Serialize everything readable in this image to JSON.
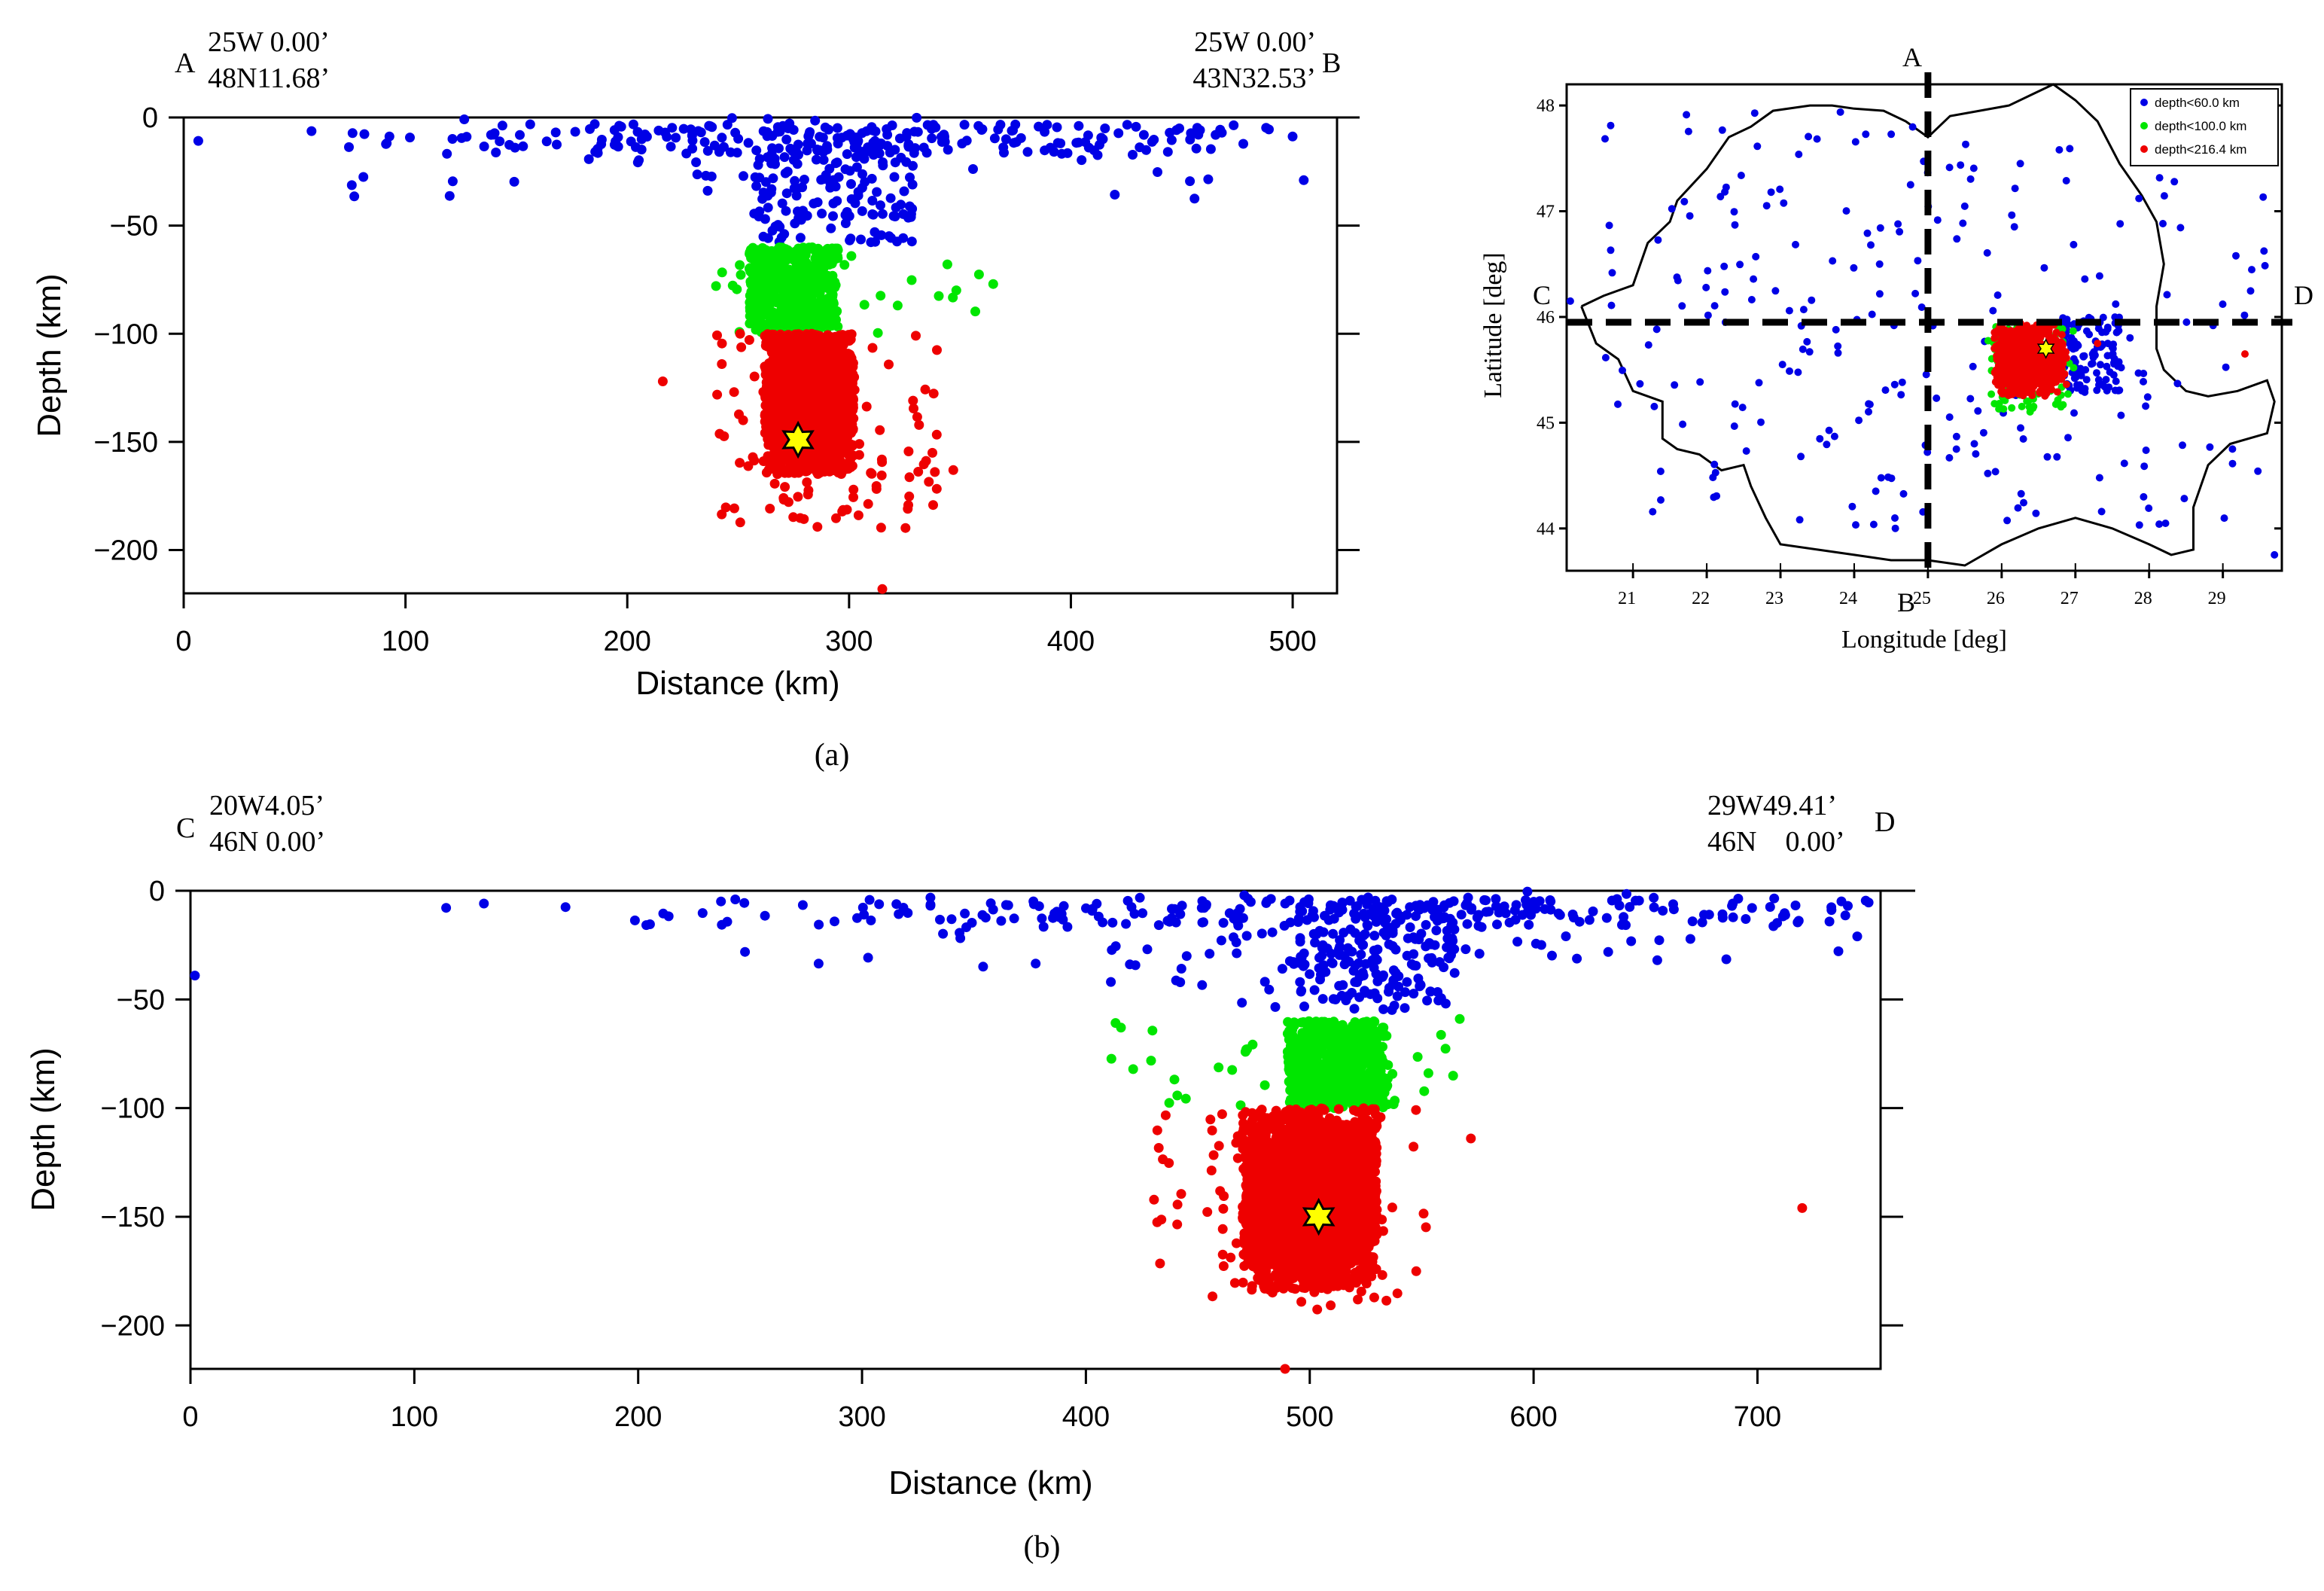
{
  "figure": {
    "caption_a": "(a)",
    "caption_b": "(b)"
  },
  "colors": {
    "shallow": "#0000e6",
    "intermediate": "#00e600",
    "deep": "#ee0000",
    "star": "#ffff00",
    "axis": "#000000"
  },
  "chart_data": [
    {
      "id": "profile-a",
      "type": "scatter",
      "title": "",
      "xlabel": "Distance (km)",
      "ylabel": "Depth (km)",
      "xlim": [
        0,
        520
      ],
      "ylim": [
        -220,
        0
      ],
      "xticks": [
        0,
        100,
        200,
        300,
        400,
        500
      ],
      "yticks": [
        0,
        -50,
        -100,
        -150,
        -200
      ],
      "start_letter": "A",
      "end_letter": "B",
      "start_label": [
        "25W 0.00’",
        "48N11.68’"
      ],
      "end_label": [
        "25W 0.00’",
        "43N32.53’"
      ],
      "clusters": [
        {
          "series": "shallow",
          "n": 260,
          "x": [
            0,
            510
          ],
          "y": [
            -38,
            0
          ],
          "shape": "surface",
          "center": 285,
          "spread": 120
        },
        {
          "series": "shallow",
          "n": 150,
          "x": [
            255,
            330
          ],
          "y": [
            -58,
            -5
          ],
          "shape": "box"
        },
        {
          "series": "intermediate",
          "n": 550,
          "x": [
            255,
            295
          ],
          "y": [
            -100,
            -60
          ],
          "shape": "box"
        },
        {
          "series": "intermediate",
          "n": 30,
          "x": [
            240,
            365
          ],
          "y": [
            -100,
            -62
          ],
          "shape": "box"
        },
        {
          "series": "deep",
          "n": 2600,
          "x": [
            262,
            302
          ],
          "y": [
            -165,
            -100
          ],
          "shape": "blob",
          "cx": 282,
          "cy": -130,
          "rx": 24,
          "ry": 34
        },
        {
          "series": "deep",
          "n": 120,
          "x": [
            240,
            340
          ],
          "y": [
            -190,
            -100
          ],
          "shape": "box"
        }
      ],
      "extra_points": [
        {
          "series": "deep",
          "x": 216,
          "y": -122
        },
        {
          "series": "deep",
          "x": 315,
          "y": -218
        },
        {
          "series": "deep",
          "x": 347,
          "y": -163
        },
        {
          "series": "shallow",
          "x": 505,
          "y": -29
        },
        {
          "series": "intermediate",
          "x": 365,
          "y": -77
        }
      ],
      "mainshock": {
        "x": 277,
        "y": -149
      }
    },
    {
      "id": "profile-b",
      "type": "scatter",
      "title": "",
      "xlabel": "Distance (km)",
      "ylabel": "Depth (km)",
      "xlim": [
        0,
        755
      ],
      "ylim": [
        -220,
        0
      ],
      "xticks": [
        0,
        100,
        200,
        300,
        400,
        500,
        600,
        700
      ],
      "yticks": [
        0,
        -50,
        -100,
        -150,
        -200
      ],
      "start_letter": "C",
      "end_letter": "D",
      "start_label": [
        "20W4.05’",
        "46N 0.00’"
      ],
      "end_label": [
        "29W49.41’",
        "46N    0.00’"
      ],
      "clusters": [
        {
          "series": "shallow",
          "n": 280,
          "x": [
            25,
            750
          ],
          "y": [
            -35,
            0
          ],
          "shape": "surface",
          "center": 530,
          "spread": 160
        },
        {
          "series": "shallow",
          "n": 200,
          "x": [
            495,
            565
          ],
          "y": [
            -55,
            -5
          ],
          "shape": "box"
        },
        {
          "series": "shallow",
          "n": 20,
          "x": [
            400,
            495
          ],
          "y": [
            -55,
            -15
          ],
          "shape": "box"
        },
        {
          "series": "intermediate",
          "n": 600,
          "x": [
            490,
            535
          ],
          "y": [
            -100,
            -60
          ],
          "shape": "box"
        },
        {
          "series": "intermediate",
          "n": 40,
          "x": [
            410,
            565
          ],
          "y": [
            -100,
            -60
          ],
          "shape": "box"
        },
        {
          "series": "deep",
          "n": 2800,
          "x": [
            470,
            530
          ],
          "y": [
            -185,
            -100
          ],
          "shape": "blob",
          "cx": 500,
          "cy": -140,
          "rx": 40,
          "ry": 40
        },
        {
          "series": "deep",
          "n": 80,
          "x": [
            430,
            555
          ],
          "y": [
            -195,
            -100
          ],
          "shape": "box"
        }
      ],
      "extra_points": [
        {
          "series": "deep",
          "x": 720,
          "y": -146
        },
        {
          "series": "deep",
          "x": 489,
          "y": -220
        },
        {
          "series": "shallow",
          "x": 2,
          "y": -39
        },
        {
          "series": "intermediate",
          "x": 567,
          "y": -59
        },
        {
          "series": "deep",
          "x": 572,
          "y": -114
        }
      ],
      "mainshock": {
        "x": 504,
        "y": -150
      }
    },
    {
      "id": "epicenter-map",
      "type": "scatter",
      "title": "",
      "xlabel": "Longitude [deg]",
      "ylabel": "Latitude [deg]",
      "xlim": [
        20.1,
        29.8
      ],
      "ylim": [
        43.6,
        48.2
      ],
      "xticks": [
        21,
        22,
        23,
        24,
        25,
        26,
        27,
        28,
        29
      ],
      "yticks": [
        44,
        45,
        46,
        47,
        48
      ],
      "legend_position": "top-right",
      "legend": [
        {
          "series": "shallow",
          "label": "depth<60.0 km"
        },
        {
          "series": "intermediate",
          "label": "depth<100.0 km"
        },
        {
          "series": "deep",
          "label": "depth<216.4 km"
        }
      ],
      "section_lines": [
        {
          "from_letter": "A",
          "to_letter": "B",
          "lon": 25.0
        },
        {
          "from_letter": "C",
          "to_letter": "D",
          "lat": 45.95
        }
      ],
      "border": [
        [
          20.3,
          46.1
        ],
        [
          20.6,
          46.2
        ],
        [
          21.0,
          46.3
        ],
        [
          21.2,
          46.7
        ],
        [
          21.5,
          46.9
        ],
        [
          21.6,
          47.1
        ],
        [
          22.0,
          47.4
        ],
        [
          22.3,
          47.7
        ],
        [
          22.6,
          47.8
        ],
        [
          22.9,
          47.95
        ],
        [
          23.4,
          48.0
        ],
        [
          23.7,
          48.0
        ],
        [
          24.0,
          47.97
        ],
        [
          24.4,
          47.95
        ],
        [
          24.7,
          47.85
        ],
        [
          25.0,
          47.7
        ],
        [
          25.3,
          47.9
        ],
        [
          25.7,
          47.95
        ],
        [
          26.1,
          48.0
        ],
        [
          26.4,
          48.1
        ],
        [
          26.7,
          48.2
        ],
        [
          27.0,
          48.05
        ],
        [
          27.3,
          47.85
        ],
        [
          27.6,
          47.45
        ],
        [
          27.9,
          47.15
        ],
        [
          28.1,
          46.9
        ],
        [
          28.2,
          46.5
        ],
        [
          28.1,
          46.1
        ],
        [
          28.1,
          45.7
        ],
        [
          28.2,
          45.5
        ],
        [
          28.5,
          45.3
        ],
        [
          28.8,
          45.25
        ],
        [
          29.2,
          45.3
        ],
        [
          29.6,
          45.4
        ],
        [
          29.7,
          45.2
        ],
        [
          29.6,
          44.9
        ],
        [
          29.1,
          44.8
        ],
        [
          28.8,
          44.6
        ],
        [
          28.6,
          44.2
        ],
        [
          28.6,
          43.8
        ],
        [
          28.3,
          43.75
        ],
        [
          28.0,
          43.85
        ],
        [
          27.5,
          44.0
        ],
        [
          27.0,
          44.1
        ],
        [
          26.5,
          44.0
        ],
        [
          26.0,
          43.85
        ],
        [
          25.5,
          43.65
        ],
        [
          25.0,
          43.7
        ],
        [
          24.5,
          43.7
        ],
        [
          24.0,
          43.75
        ],
        [
          23.5,
          43.8
        ],
        [
          23.0,
          43.85
        ],
        [
          22.8,
          44.1
        ],
        [
          22.6,
          44.4
        ],
        [
          22.5,
          44.6
        ],
        [
          22.2,
          44.55
        ],
        [
          21.9,
          44.7
        ],
        [
          21.6,
          44.75
        ],
        [
          21.4,
          44.85
        ],
        [
          21.4,
          45.2
        ],
        [
          21.0,
          45.3
        ],
        [
          20.8,
          45.6
        ],
        [
          20.5,
          45.75
        ],
        [
          20.3,
          46.1
        ]
      ],
      "clusters": [
        {
          "series": "shallow",
          "n": 240,
          "x": [
            20.6,
            29.6
          ],
          "y": [
            44.0,
            47.95
          ],
          "shape": "box"
        },
        {
          "series": "shallow",
          "n": 120,
          "x": [
            26.8,
            27.6
          ],
          "y": [
            45.3,
            46.0
          ],
          "shape": "box"
        },
        {
          "series": "intermediate",
          "n": 80,
          "x": [
            25.8,
            27.0
          ],
          "y": [
            45.1,
            45.95
          ],
          "shape": "box"
        },
        {
          "series": "deep",
          "n": 900,
          "x": [
            25.9,
            26.9
          ],
          "y": [
            45.25,
            45.95
          ],
          "shape": "blob",
          "cx": 26.35,
          "cy": 45.6,
          "rx": 0.45,
          "ry": 0.3
        }
      ],
      "extra_points": [
        {
          "series": "deep",
          "x": 29.3,
          "y": 45.65
        },
        {
          "series": "deep",
          "x": 27.3,
          "y": 45.75
        },
        {
          "series": "shallow",
          "x": 29.7,
          "y": 43.75
        },
        {
          "series": "shallow",
          "x": 20.15,
          "y": 46.15
        }
      ],
      "mainshock": {
        "x": 26.6,
        "y": 45.7
      }
    }
  ]
}
